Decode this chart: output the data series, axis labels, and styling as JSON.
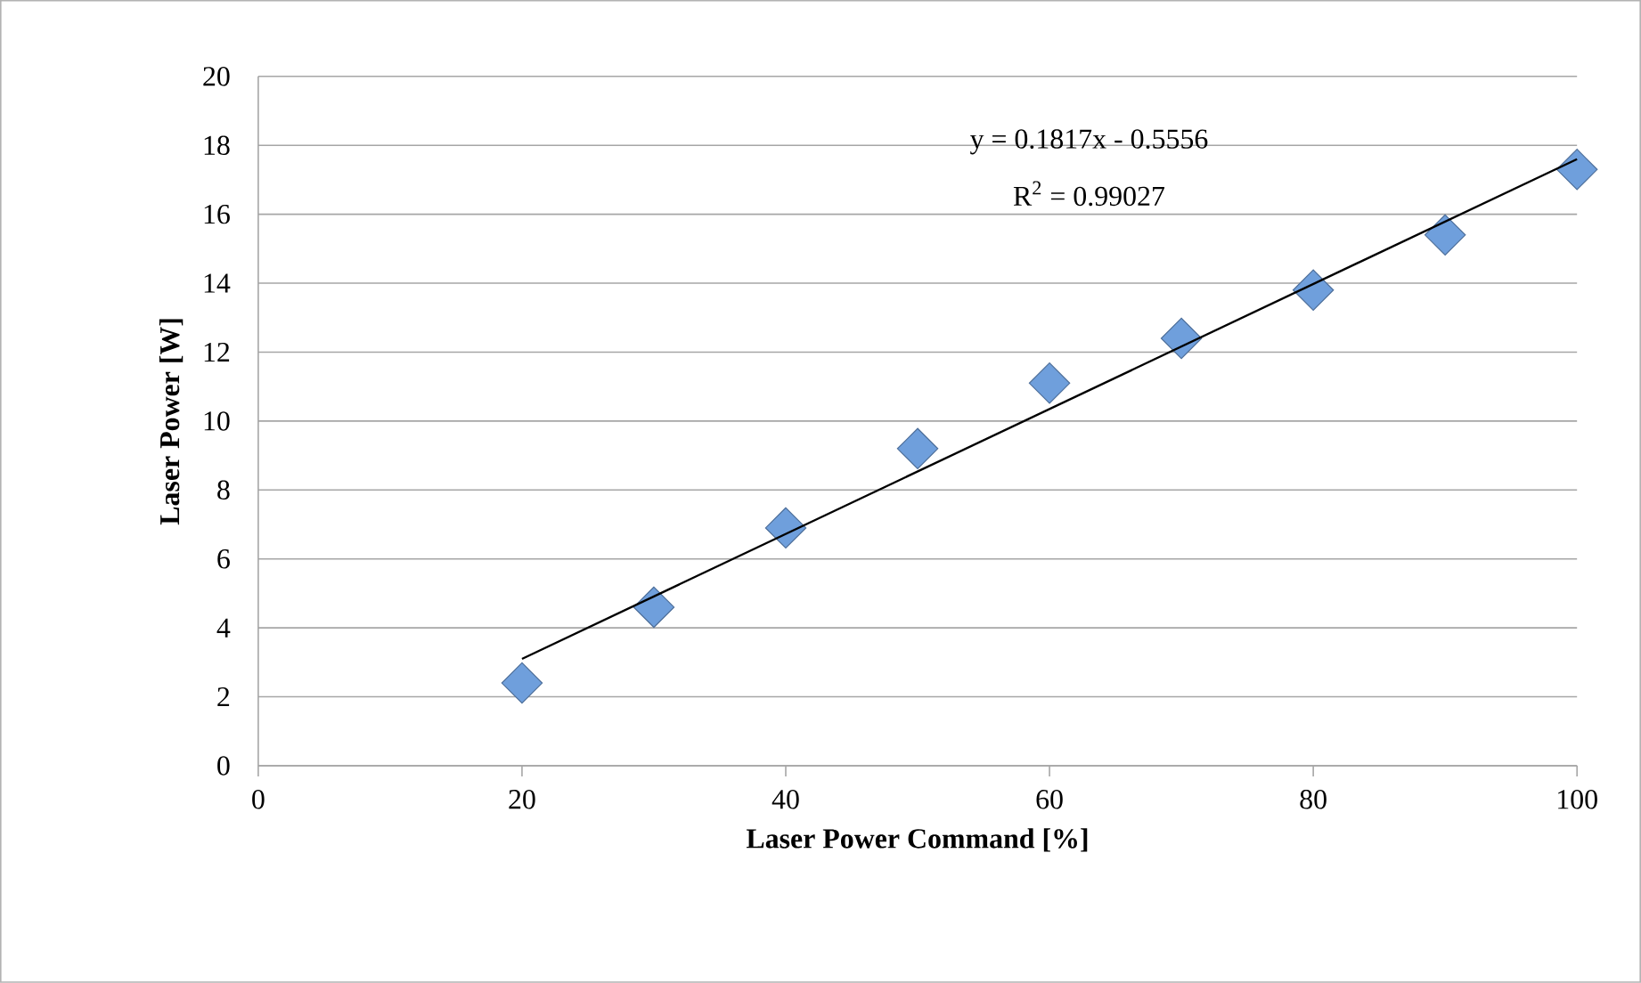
{
  "chart_data": {
    "type": "scatter",
    "xlabel": "Laser Power Command [%]",
    "ylabel": "Laser Power [W]",
    "series": [
      {
        "color": "#6f9fdc",
        "marker": "diamond",
        "x": [
          20,
          30,
          40,
          50,
          60,
          70,
          80,
          90,
          100
        ],
        "values": [
          2.4,
          4.6,
          6.9,
          9.2,
          11.1,
          12.4,
          13.8,
          15.4,
          17.3
        ]
      },
      {
        "type": "line",
        "color": "#000000",
        "line_style": "solid",
        "x": [
          20,
          100
        ],
        "values": [
          3.1,
          17.6
        ]
      }
    ],
    "xlim": [
      0,
      100
    ],
    "ylim": [
      0,
      20
    ],
    "xticks": [
      0,
      20,
      40,
      60,
      80,
      100
    ],
    "yticks": [
      0,
      2,
      4,
      6,
      8,
      10,
      12,
      14,
      16,
      18,
      20
    ],
    "grid": "y",
    "annotations": [
      "y = 0.1817x - 0.5556",
      "R$^{2}$ = 0.99027"
    ]
  }
}
